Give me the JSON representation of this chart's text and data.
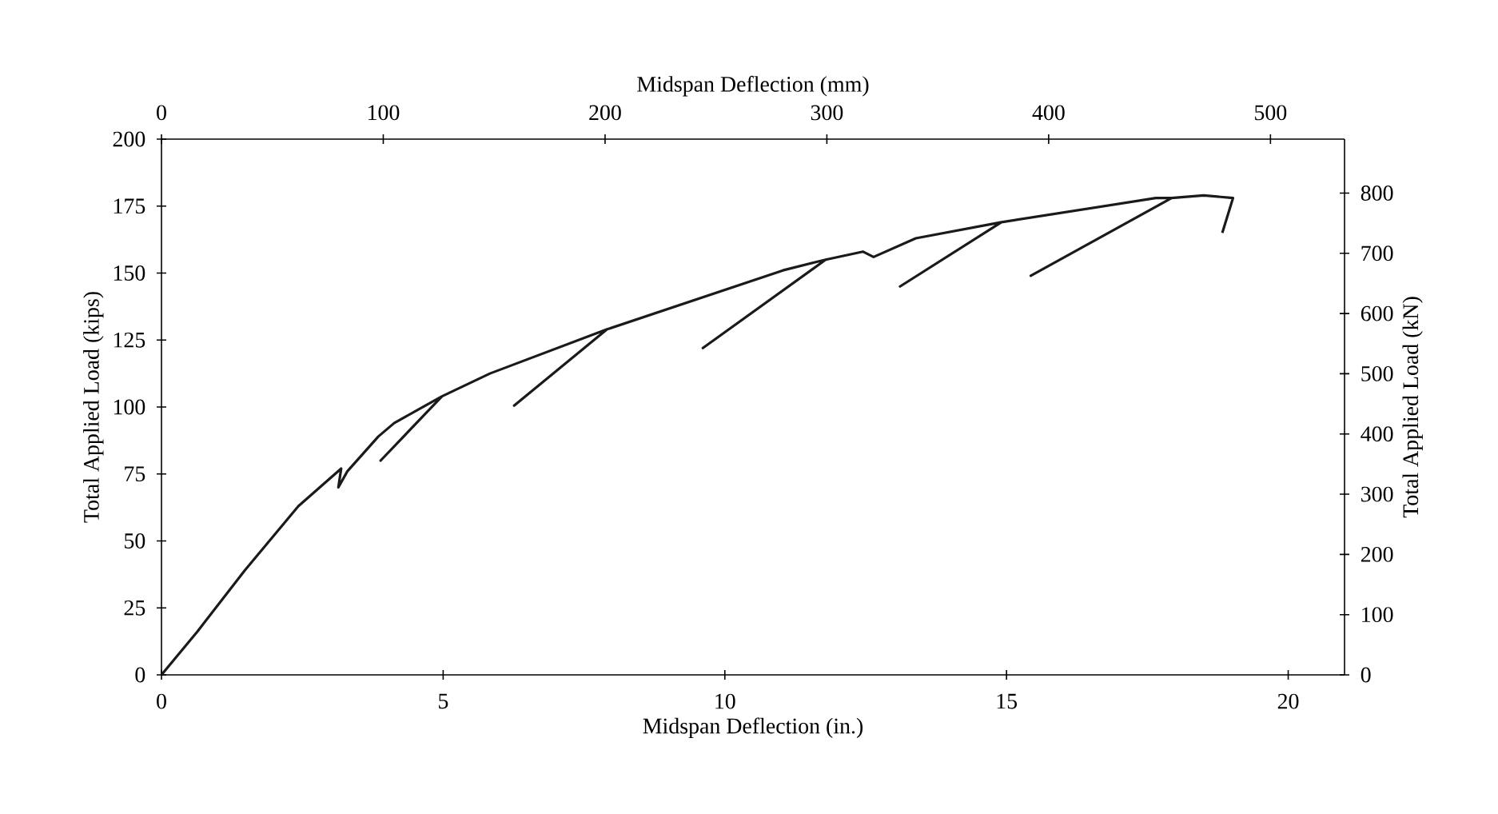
{
  "chart_data": {
    "type": "line",
    "xlabel": "Midspan Deflection (in.)",
    "x2label": "Midspan Deflection (mm)",
    "ylabel": "Total Applied Load (kips)",
    "y2label": "Total Applied Load (kN)",
    "xlim": [
      0,
      21
    ],
    "xticks": [
      0,
      5,
      10,
      15,
      20
    ],
    "x2lim": [
      0,
      533.4
    ],
    "x2ticks": [
      0,
      100,
      200,
      300,
      400,
      500
    ],
    "ylim": [
      0,
      200
    ],
    "yticks": [
      0,
      25,
      50,
      75,
      100,
      125,
      150,
      175,
      200
    ],
    "y2lim": [
      0,
      889.6
    ],
    "y2ticks": [
      0,
      100,
      200,
      300,
      400,
      500,
      600,
      700,
      800
    ],
    "grid": false,
    "legend": false,
    "marker": "none",
    "line_style": "solid",
    "series": [
      {
        "color": "#1a1a1a",
        "x": [
          0,
          0.63,
          1.48,
          2.43,
          3.19,
          3.14,
          3.3,
          3.85,
          4.13,
          4.98,
          3.89,
          4.98,
          5.83,
          7.91,
          6.26,
          7.91,
          11.03,
          11.79,
          9.61,
          11.79,
          12.45,
          12.64,
          13.39,
          14.91,
          13.11,
          14.91,
          17.65,
          17.93,
          15.43,
          17.93,
          18.5,
          19.02,
          18.83
        ],
        "values": [
          0,
          16,
          39,
          63,
          77,
          70,
          76,
          89,
          94,
          104,
          80,
          104,
          112.5,
          129,
          100.5,
          129,
          151,
          155,
          122,
          155,
          158,
          156,
          163,
          169,
          145,
          169,
          178,
          178,
          149,
          178,
          179,
          178,
          165
        ]
      }
    ]
  }
}
